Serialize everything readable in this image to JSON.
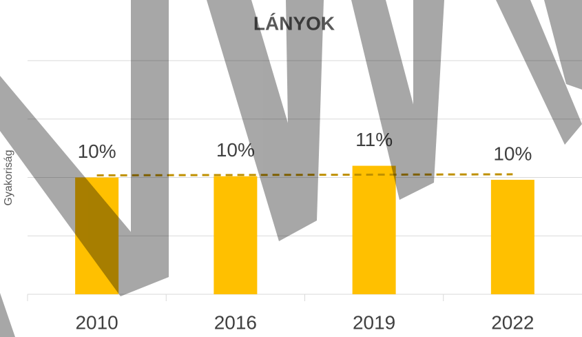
{
  "chart_data": {
    "type": "bar",
    "title": "LÁNYOK",
    "y_label": "Gyakoriság",
    "categories": [
      "2010",
      "2016",
      "2019",
      "2022"
    ],
    "values": [
      10,
      10.1,
      11,
      9.8
    ],
    "value_labels": [
      "10%",
      "10%",
      "11%",
      "10%"
    ],
    "color": "#ffc000",
    "trendline": {
      "values": [
        10.18,
        10.21,
        10.24,
        10.27
      ],
      "color": "#bf9000",
      "dashed": true
    },
    "ylim": [
      0,
      20
    ],
    "yticks": [
      0,
      5,
      10,
      15,
      20
    ],
    "grid": true
  }
}
